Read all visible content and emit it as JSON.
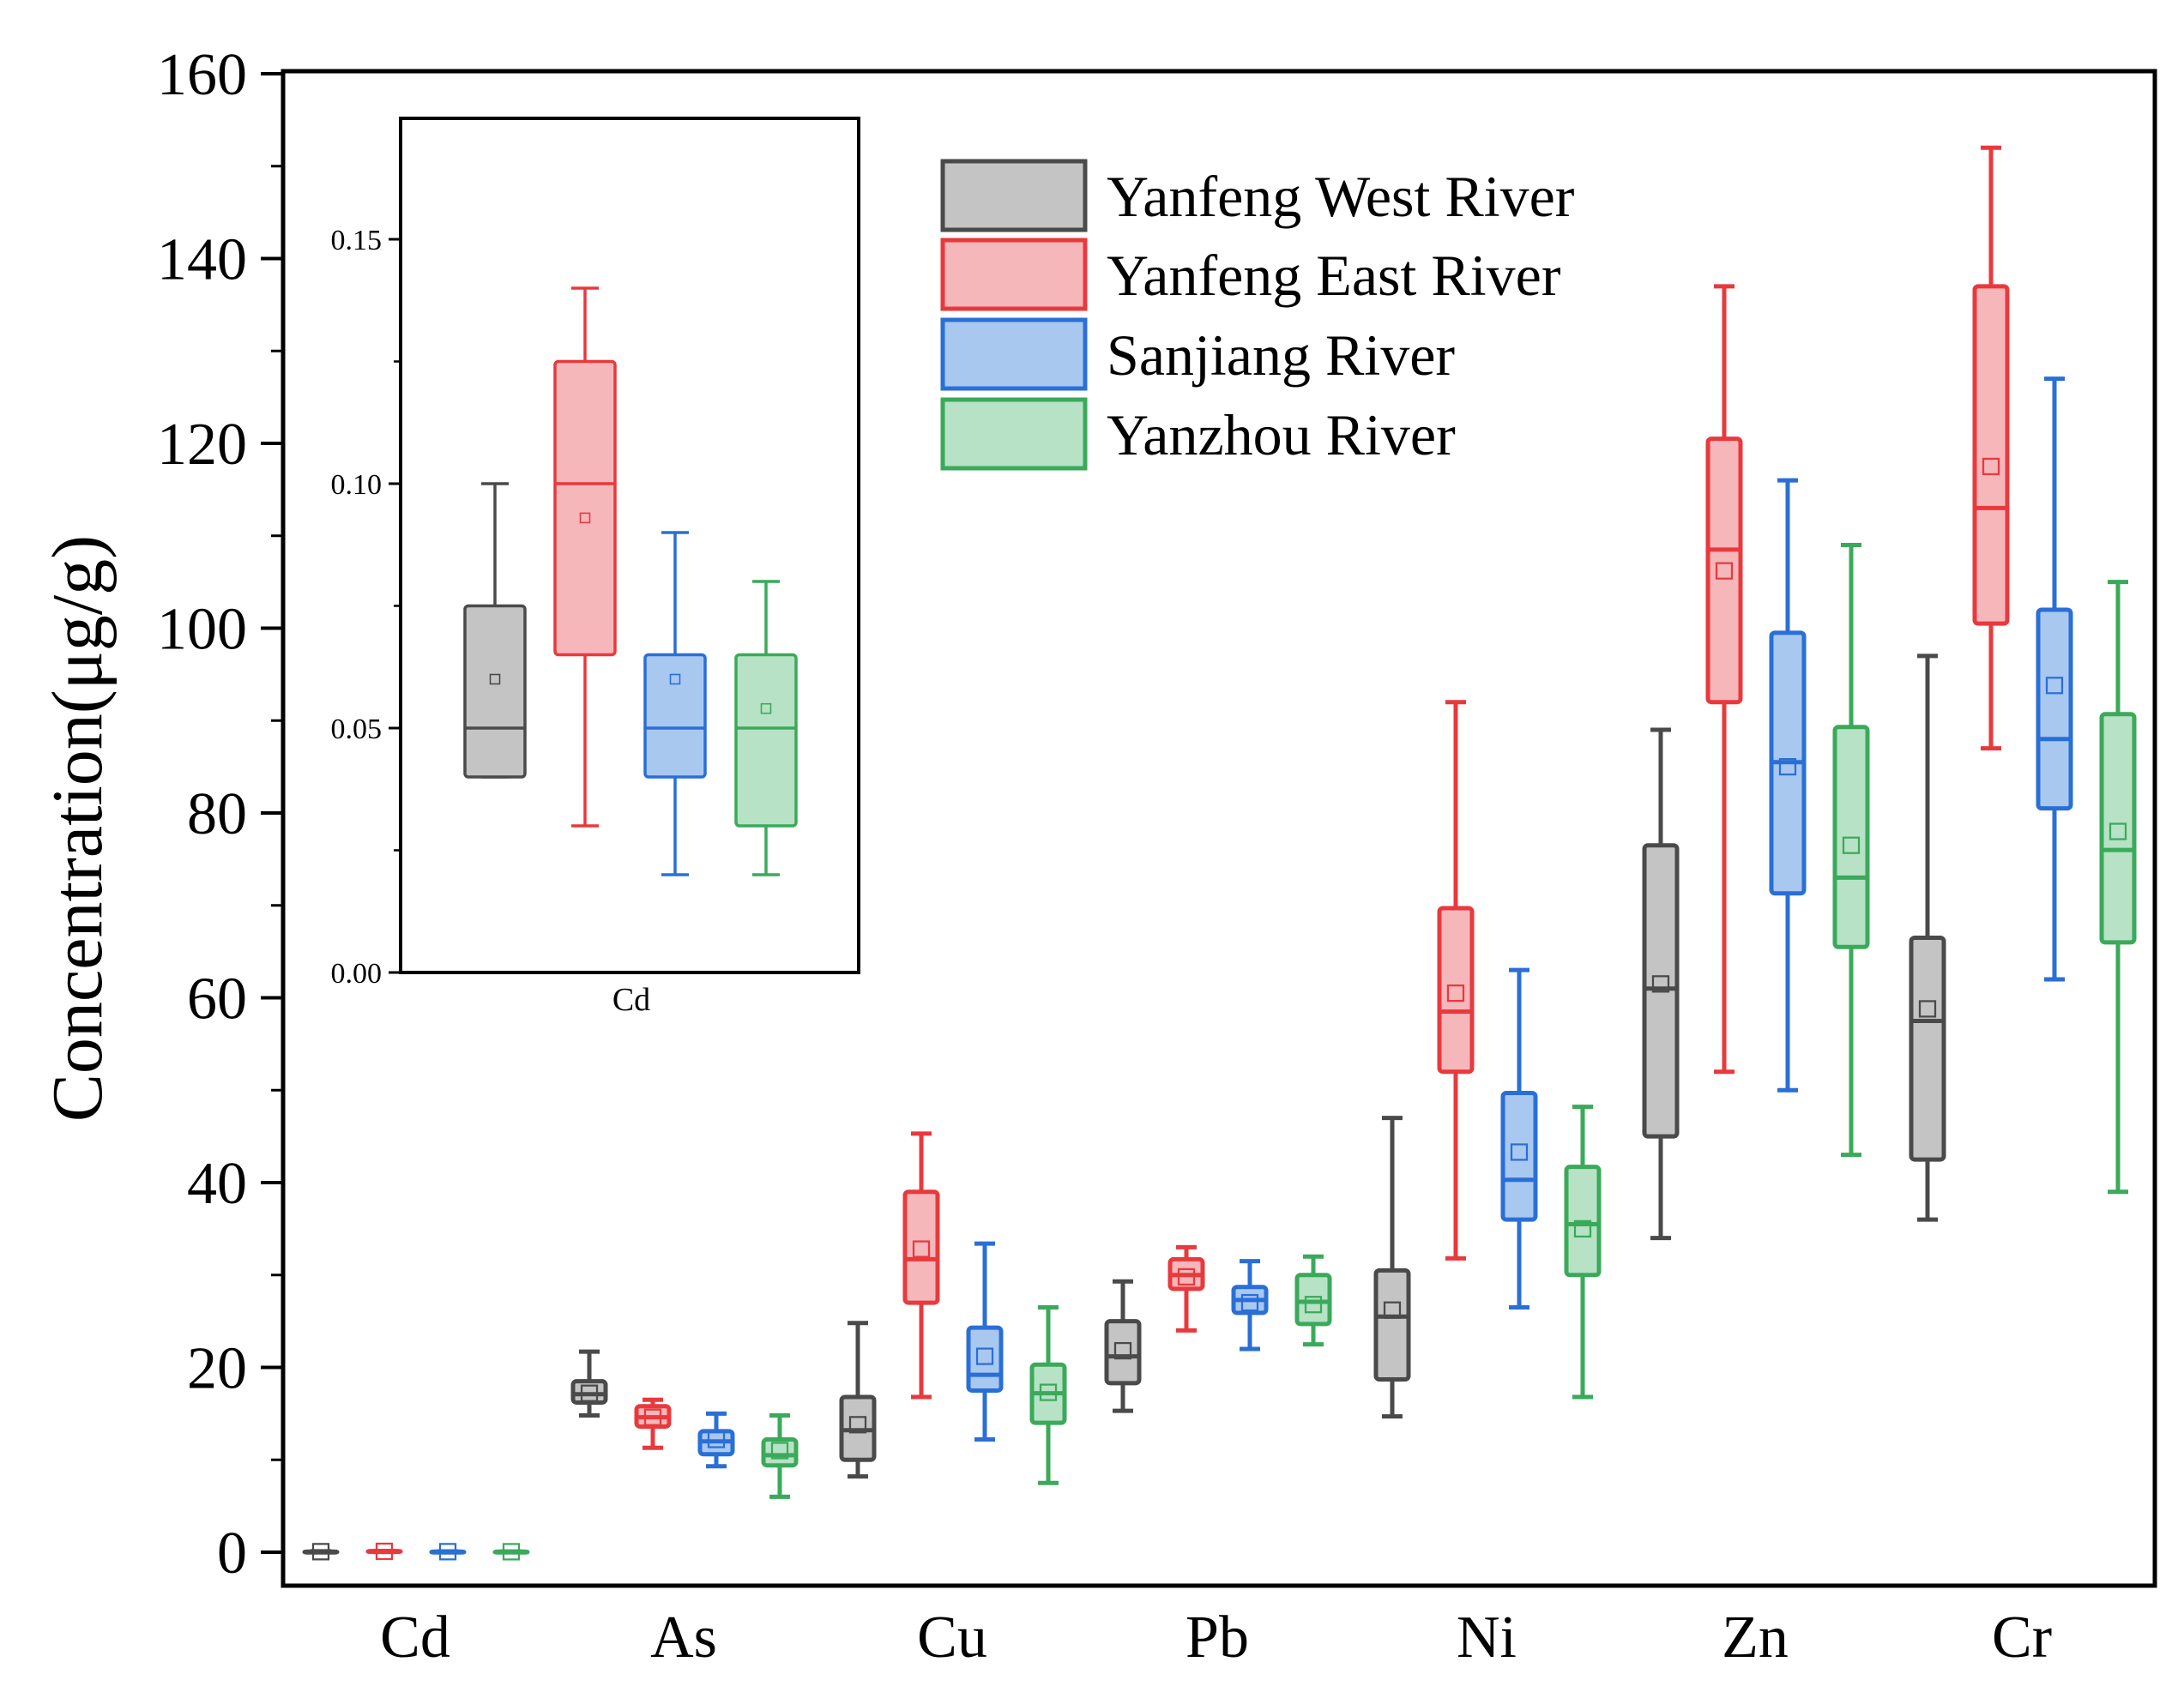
{
  "colors": {
    "yanfeng_west": {
      "stroke": "#4a4a4a",
      "fill": "#c4c4c4"
    },
    "yanfeng_east": {
      "stroke": "#e8393d",
      "fill": "#f6b7bb"
    },
    "sanjiang": {
      "stroke": "#2a6fd6",
      "fill": "#a9c8f0"
    },
    "yanzhou": {
      "stroke": "#3aaa5a",
      "fill": "#b7e2c5"
    }
  },
  "chart_data": [
    {
      "type": "box",
      "title": "",
      "xlabel": "",
      "ylabel": "Concentration(μg/g)",
      "ylim": [
        -3,
        160
      ],
      "yticks": [
        0,
        20,
        40,
        60,
        80,
        100,
        120,
        140,
        160
      ],
      "yticks_labels": [
        "0",
        "20",
        "40",
        "60",
        "80",
        "100",
        "120",
        "140",
        "160"
      ],
      "categories": [
        "Cd",
        "As",
        "Cu",
        "Pb",
        "Ni",
        "Zn",
        "Cr"
      ],
      "legend_position": "top-right",
      "series": [
        {
          "name": "Yanfeng West River",
          "color_key": "yanfeng_west",
          "boxes": [
            {
              "min": 0.04,
              "q1": 0.04,
              "median": 0.05,
              "q3": 0.075,
              "max": 0.1,
              "mean": 0.06
            },
            {
              "min": 14.8,
              "q1": 16.2,
              "median": 17.1,
              "q3": 18.5,
              "max": 21.7,
              "mean": 17.2
            },
            {
              "min": 8.2,
              "q1": 10.0,
              "median": 13.2,
              "q3": 16.8,
              "max": 24.8,
              "mean": 13.8
            },
            {
              "min": 15.3,
              "q1": 18.3,
              "median": 21.2,
              "q3": 25.0,
              "max": 29.3,
              "mean": 21.8
            },
            {
              "min": 14.7,
              "q1": 18.7,
              "median": 25.5,
              "q3": 30.5,
              "max": 47.0,
              "mean": 26.2
            },
            {
              "min": 34.0,
              "q1": 45.0,
              "median": 61.0,
              "q3": 76.5,
              "max": 89.0,
              "mean": 61.5
            },
            {
              "min": 36.0,
              "q1": 42.5,
              "median": 57.5,
              "q3": 66.5,
              "max": 97.0,
              "mean": 58.8
            }
          ]
        },
        {
          "name": "Yanfeng East River",
          "color_key": "yanfeng_east",
          "boxes": [
            {
              "min": 0.03,
              "q1": 0.065,
              "median": 0.1,
              "q3": 0.125,
              "max": 0.14,
              "mean": 0.093
            },
            {
              "min": 11.3,
              "q1": 13.6,
              "median": 14.6,
              "q3": 15.8,
              "max": 16.5,
              "mean": 14.6
            },
            {
              "min": 16.8,
              "q1": 27.0,
              "median": 31.7,
              "q3": 39.0,
              "max": 45.3,
              "mean": 32.8
            },
            {
              "min": 24.0,
              "q1": 28.5,
              "median": 30.0,
              "q3": 31.7,
              "max": 33.0,
              "mean": 29.8
            },
            {
              "min": 31.8,
              "q1": 52.0,
              "median": 58.5,
              "q3": 69.7,
              "max": 92.0,
              "mean": 60.5
            },
            {
              "min": 52.0,
              "q1": 92.0,
              "median": 108.5,
              "q3": 120.5,
              "max": 137.0,
              "mean": 106.2
            },
            {
              "min": 87.0,
              "q1": 100.5,
              "median": 113.0,
              "q3": 137.0,
              "max": 152.0,
              "mean": 117.5
            }
          ]
        },
        {
          "name": "Sanjiang River",
          "color_key": "sanjiang",
          "boxes": [
            {
              "min": 0.02,
              "q1": 0.04,
              "median": 0.05,
              "q3": 0.065,
              "max": 0.09,
              "mean": 0.06
            },
            {
              "min": 9.3,
              "q1": 10.6,
              "median": 12.0,
              "q3": 13.1,
              "max": 15.0,
              "mean": 12.2
            },
            {
              "min": 12.2,
              "q1": 17.5,
              "median": 19.2,
              "q3": 24.3,
              "max": 33.4,
              "mean": 21.2
            },
            {
              "min": 22.0,
              "q1": 25.9,
              "median": 27.3,
              "q3": 28.7,
              "max": 31.5,
              "mean": 27.0
            },
            {
              "min": 26.5,
              "q1": 36.0,
              "median": 40.3,
              "q3": 49.7,
              "max": 63.0,
              "mean": 43.3
            },
            {
              "min": 50.0,
              "q1": 71.3,
              "median": 85.5,
              "q3": 99.5,
              "max": 116.0,
              "mean": 85.0
            },
            {
              "min": 62.0,
              "q1": 80.5,
              "median": 88.0,
              "q3": 102.0,
              "max": 127.0,
              "mean": 93.8
            }
          ]
        },
        {
          "name": "Yanzhou River",
          "color_key": "yanzhou",
          "boxes": [
            {
              "min": 0.02,
              "q1": 0.03,
              "median": 0.05,
              "q3": 0.065,
              "max": 0.08,
              "mean": 0.054
            },
            {
              "min": 6.0,
              "q1": 9.4,
              "median": 10.5,
              "q3": 12.2,
              "max": 14.8,
              "mean": 11.0
            },
            {
              "min": 7.5,
              "q1": 14.0,
              "median": 17.2,
              "q3": 20.3,
              "max": 26.5,
              "mean": 17.3
            },
            {
              "min": 22.5,
              "q1": 24.7,
              "median": 27.1,
              "q3": 30.0,
              "max": 32.0,
              "mean": 26.8
            },
            {
              "min": 16.8,
              "q1": 30.0,
              "median": 35.5,
              "q3": 41.7,
              "max": 48.2,
              "mean": 35.0
            },
            {
              "min": 43.0,
              "q1": 65.5,
              "median": 73.0,
              "q3": 89.3,
              "max": 109.0,
              "mean": 76.5
            },
            {
              "min": 39.0,
              "q1": 66.0,
              "median": 76.0,
              "q3": 90.7,
              "max": 105.0,
              "mean": 78.0
            }
          ]
        }
      ]
    },
    {
      "type": "box",
      "role": "inset",
      "title": "",
      "xlabel": "Cd",
      "ylabel": "",
      "ylim": [
        0,
        0.175
      ],
      "yticks": [
        0.0,
        0.05,
        0.1,
        0.15
      ],
      "yticks_labels": [
        "0.00",
        "0.05",
        "0.10",
        "0.15"
      ],
      "categories": [
        "Cd"
      ],
      "series": [
        {
          "name": "Yanfeng West River",
          "color_key": "yanfeng_west",
          "boxes": [
            {
              "min": 0.04,
              "q1": 0.04,
              "median": 0.05,
              "q3": 0.075,
              "max": 0.1,
              "mean": 0.06
            }
          ]
        },
        {
          "name": "Yanfeng East River",
          "color_key": "yanfeng_east",
          "boxes": [
            {
              "min": 0.03,
              "q1": 0.065,
              "median": 0.1,
              "q3": 0.125,
              "max": 0.14,
              "mean": 0.093
            }
          ]
        },
        {
          "name": "Sanjiang River",
          "color_key": "sanjiang",
          "boxes": [
            {
              "min": 0.02,
              "q1": 0.04,
              "median": 0.05,
              "q3": 0.065,
              "max": 0.09,
              "mean": 0.06
            }
          ]
        },
        {
          "name": "Yanzhou River",
          "color_key": "yanzhou",
          "boxes": [
            {
              "min": 0.02,
              "q1": 0.03,
              "median": 0.05,
              "q3": 0.065,
              "max": 0.08,
              "mean": 0.054
            }
          ]
        }
      ]
    }
  ]
}
